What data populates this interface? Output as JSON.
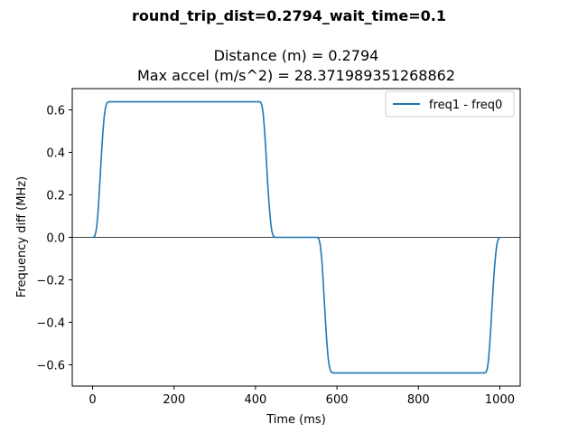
{
  "chart_data": {
    "type": "line",
    "suptitle": "round_trip_dist=0.2794_wait_time=0.1",
    "title_lines": [
      "Distance (m) = 0.2794",
      "Max accel (m/s^2) = 28.371989351268862"
    ],
    "xlabel": "Time (ms)",
    "ylabel": "Frequency diff (MHz)",
    "xlim": [
      -50,
      1050
    ],
    "ylim": [
      -0.7,
      0.7
    ],
    "xticks": [
      0,
      200,
      400,
      600,
      800,
      1000
    ],
    "xtick_labels": [
      "0",
      "200",
      "400",
      "600",
      "800",
      "1000"
    ],
    "yticks": [
      0.6,
      0.4,
      0.2,
      0.0,
      -0.2,
      -0.4,
      -0.6
    ],
    "ytick_labels": [
      "0.6",
      "0.4",
      "0.2",
      "0.0",
      "−0.2",
      "−0.4",
      "−0.6"
    ],
    "grid": false,
    "hline_y": 0,
    "legend_position": "upper right",
    "series": [
      {
        "name": "freq1 - freq0",
        "color": "#1f77b4",
        "x": [
          0,
          2,
          5,
          8,
          10,
          13,
          16,
          19,
          22,
          25,
          28,
          31,
          34,
          37,
          40,
          45,
          100,
          200,
          300,
          400,
          410,
          413,
          416,
          419,
          422,
          425,
          428,
          431,
          434,
          437,
          440,
          443,
          446,
          449,
          452,
          455,
          460,
          500,
          550,
          552,
          555,
          558,
          560,
          563,
          566,
          569,
          572,
          575,
          578,
          581,
          584,
          587,
          590,
          595,
          700,
          800,
          900,
          963,
          966,
          969,
          972,
          975,
          978,
          981,
          984,
          987,
          990,
          993,
          996,
          999,
          1000
        ],
        "y": [
          0.0,
          0.0,
          0.005,
          0.025,
          0.05,
          0.11,
          0.2,
          0.3,
          0.4,
          0.49,
          0.56,
          0.605,
          0.627,
          0.636,
          0.638,
          0.638,
          0.638,
          0.638,
          0.638,
          0.638,
          0.638,
          0.635,
          0.62,
          0.58,
          0.51,
          0.42,
          0.32,
          0.22,
          0.14,
          0.075,
          0.03,
          0.01,
          0.002,
          0.0,
          0.0,
          0.0,
          0.0,
          0.0,
          0.0,
          0.0,
          -0.005,
          -0.025,
          -0.05,
          -0.11,
          -0.2,
          -0.3,
          -0.4,
          -0.49,
          -0.56,
          -0.605,
          -0.627,
          -0.636,
          -0.638,
          -0.638,
          -0.638,
          -0.638,
          -0.638,
          -0.638,
          -0.635,
          -0.62,
          -0.58,
          -0.51,
          -0.42,
          -0.32,
          -0.22,
          -0.14,
          -0.075,
          -0.03,
          -0.01,
          -0.002,
          0.0
        ]
      }
    ]
  }
}
